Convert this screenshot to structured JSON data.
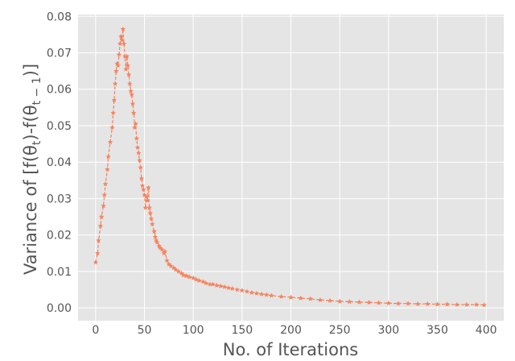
{
  "chart_data": {
    "type": "line",
    "title": "",
    "xlabel": "No. of Iterations",
    "ylabel": "Variance of [f(θ_t)-f(θ_{t-1})]",
    "ylabel_parts": {
      "prefix": "Variance of [f(θ",
      "sub1": "t",
      "middle": ")-f(θ",
      "sub2": "t − 1",
      "suffix": ")]"
    },
    "xlim": [
      -18,
      418
    ],
    "ylim": [
      -0.0035,
      0.0805
    ],
    "x_ticks": [
      0,
      50,
      100,
      150,
      200,
      250,
      300,
      350,
      400
    ],
    "y_ticks": [
      0.0,
      0.01,
      0.02,
      0.03,
      0.04,
      0.05,
      0.06,
      0.07,
      0.08
    ],
    "x_tick_labels": [
      "0",
      "50",
      "100",
      "150",
      "200",
      "250",
      "300",
      "350",
      "400"
    ],
    "y_tick_labels": [
      "0.00",
      "0.01",
      "0.02",
      "0.03",
      "0.04",
      "0.05",
      "0.06",
      "0.07",
      "0.08"
    ],
    "grid": true,
    "background": "#e5e5e5",
    "line_color": "#f4845f",
    "line_style": "dashed",
    "marker": "star",
    "series": [
      {
        "points": [
          [
            0,
            0.0125
          ],
          [
            2,
            0.015
          ],
          [
            3,
            0.0185
          ],
          [
            5,
            0.0225
          ],
          [
            6,
            0.025
          ],
          [
            8,
            0.028
          ],
          [
            9,
            0.031
          ],
          [
            10,
            0.034
          ],
          [
            12,
            0.038
          ],
          [
            13,
            0.0415
          ],
          [
            15,
            0.0455
          ],
          [
            17,
            0.0495
          ],
          [
            18,
            0.0535
          ],
          [
            19,
            0.057
          ],
          [
            20,
            0.0615
          ],
          [
            21,
            0.065
          ],
          [
            22,
            0.067
          ],
          [
            23,
            0.0665
          ],
          [
            24,
            0.0695
          ],
          [
            25,
            0.0725
          ],
          [
            26,
            0.0745
          ],
          [
            27,
            0.0735
          ],
          [
            28,
            0.0765
          ],
          [
            29,
            0.0725
          ],
          [
            30,
            0.069
          ],
          [
            31,
            0.0655
          ],
          [
            32,
            0.069
          ],
          [
            33,
            0.0665
          ],
          [
            34,
            0.064
          ],
          [
            35,
            0.0615
          ],
          [
            36,
            0.0595
          ],
          [
            37,
            0.0585
          ],
          [
            38,
            0.056
          ],
          [
            39,
            0.0535
          ],
          [
            40,
            0.0495
          ],
          [
            41,
            0.0505
          ],
          [
            42,
            0.0465
          ],
          [
            43,
            0.044
          ],
          [
            44,
            0.0425
          ],
          [
            45,
            0.0405
          ],
          [
            46,
            0.0385
          ],
          [
            47,
            0.0355
          ],
          [
            48,
            0.0335
          ],
          [
            49,
            0.0325
          ],
          [
            50,
            0.031
          ],
          [
            51,
            0.0275
          ],
          [
            52,
            0.0305
          ],
          [
            53,
            0.0295
          ],
          [
            54,
            0.033
          ],
          [
            55,
            0.0275
          ],
          [
            56,
            0.026
          ],
          [
            57,
            0.0245
          ],
          [
            58,
            0.023
          ],
          [
            60,
            0.021
          ],
          [
            61,
            0.0195
          ],
          [
            62,
            0.0185
          ],
          [
            63,
            0.018
          ],
          [
            65,
            0.017
          ],
          [
            66,
            0.0165
          ],
          [
            68,
            0.016
          ],
          [
            70,
            0.015
          ],
          [
            71,
            0.0155
          ],
          [
            73,
            0.013
          ],
          [
            75,
            0.012
          ],
          [
            77,
            0.0115
          ],
          [
            80,
            0.011
          ],
          [
            82,
            0.0105
          ],
          [
            85,
            0.01
          ],
          [
            88,
            0.0095
          ],
          [
            90,
            0.009
          ],
          [
            93,
            0.0088
          ],
          [
            96,
            0.0085
          ],
          [
            100,
            0.0082
          ],
          [
            103,
            0.0078
          ],
          [
            106,
            0.0075
          ],
          [
            110,
            0.0072
          ],
          [
            113,
            0.0068
          ],
          [
            117,
            0.0065
          ],
          [
            120,
            0.0065
          ],
          [
            124,
            0.0062
          ],
          [
            128,
            0.006
          ],
          [
            132,
            0.0058
          ],
          [
            136,
            0.0055
          ],
          [
            140,
            0.0053
          ],
          [
            145,
            0.005
          ],
          [
            150,
            0.0048
          ],
          [
            155,
            0.0045
          ],
          [
            160,
            0.0042
          ],
          [
            165,
            0.004
          ],
          [
            170,
            0.0038
          ],
          [
            175,
            0.0036
          ],
          [
            180,
            0.0034
          ],
          [
            190,
            0.0031
          ],
          [
            200,
            0.0029
          ],
          [
            210,
            0.0027
          ],
          [
            220,
            0.0025
          ],
          [
            230,
            0.0022
          ],
          [
            240,
            0.002
          ],
          [
            250,
            0.0018
          ],
          [
            260,
            0.0017
          ],
          [
            270,
            0.0016
          ],
          [
            280,
            0.0015
          ],
          [
            290,
            0.0014
          ],
          [
            300,
            0.0013
          ],
          [
            310,
            0.0012
          ],
          [
            320,
            0.0012
          ],
          [
            330,
            0.0011
          ],
          [
            340,
            0.0011
          ],
          [
            350,
            0.001
          ],
          [
            360,
            0.001
          ],
          [
            370,
            0.0009
          ],
          [
            380,
            0.0009
          ],
          [
            390,
            0.0009
          ],
          [
            398,
            0.0008
          ]
        ]
      }
    ]
  }
}
